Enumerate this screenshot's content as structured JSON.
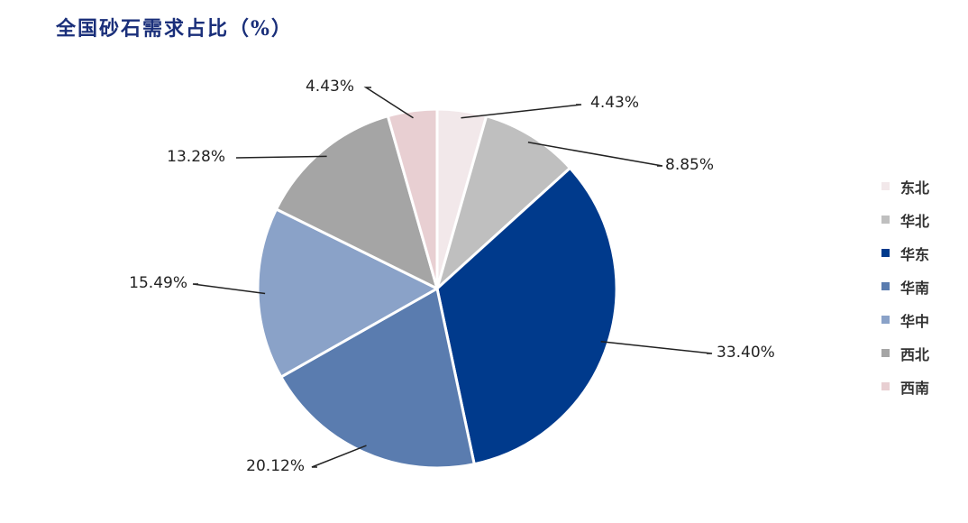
{
  "title": "全国砂石需求占比（%）",
  "chart_data": {
    "type": "pie",
    "title": "全国砂石需求占比（%）",
    "slices": [
      {
        "name": "东北",
        "value": 4.43,
        "label": "4.43%",
        "color": "#f2e8ea"
      },
      {
        "name": "华北",
        "value": 8.85,
        "label": "8.85%",
        "color": "#bfbfbf"
      },
      {
        "name": "华东",
        "value": 33.4,
        "label": "33.40%",
        "color": "#003a8c"
      },
      {
        "name": "华南",
        "value": 20.12,
        "label": "20.12%",
        "color": "#5a7caf"
      },
      {
        "name": "华中",
        "value": 15.49,
        "label": "15.49%",
        "color": "#8aa2c8"
      },
      {
        "name": "西北",
        "value": 13.28,
        "label": "13.28%",
        "color": "#a5a5a5"
      },
      {
        "name": "西南",
        "value": 4.43,
        "label": "4.43%",
        "color": "#e8cfd2"
      }
    ],
    "legend_position": "right",
    "start_angle": "12 o'clock",
    "direction": "clockwise"
  }
}
